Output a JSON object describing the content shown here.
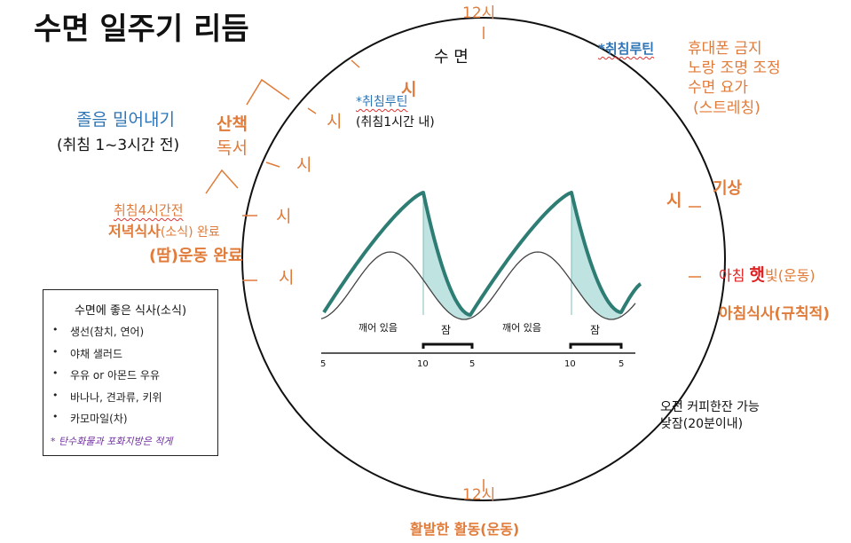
{
  "title": "수면 일주기 리듬",
  "clock": {
    "top_label": "12시",
    "bottom_label": "12시",
    "top_section": "수 면",
    "hour_marks": [
      "시",
      "시",
      "시",
      "시",
      "시",
      "시"
    ]
  },
  "left": {
    "delay_title": "졸음 밀어내기",
    "delay_sub": "(취침 1~3시간 전)",
    "walk": "산책",
    "read": "독서",
    "dinner_line1": "취침4시간전",
    "dinner_line2_bold": "저녁식사",
    "dinner_line2_rest": "(소식) 완료",
    "exercise": "(땀)운동 완료"
  },
  "center": {
    "routine_label": "*취침루틴",
    "routine_sub": "(취침1시간 내)"
  },
  "right_top": {
    "routine_label": "*취침루틴",
    "items": [
      "휴대폰 금지",
      "노랑 조명 조정",
      "수면 요가",
      "(스트레칭)"
    ]
  },
  "right": {
    "wake": "기상",
    "sun_prefix": "아침 ",
    "sun_bold": "햇",
    "sun_rest": "빛(운동)",
    "breakfast": "아침식사(규칙적)",
    "coffee_line1": "오전 커피한잔 가능",
    "coffee_line2": "낮잠(20분이내)"
  },
  "bottom": {
    "activity": "활발한 활동(운동)"
  },
  "food_box": {
    "title": "수면에 좋은 식사(소식)",
    "items": [
      "생선(참치, 연어)",
      "야채 샐러드",
      "우유 or 아몬드 우유",
      "바나나, 견과류, 키위",
      "카모마일(차)"
    ],
    "note": "* 탄수화물과 포화지방은 적게"
  },
  "graph": {
    "labels": {
      "awake1": "깨어 있음",
      "sleep1": "잠",
      "awake2": "깨어 있음",
      "sleep2": "잠"
    },
    "ticks": [
      "5",
      "10",
      "5",
      "10",
      "5"
    ],
    "colors": {
      "curve": "#2e7d74",
      "fill": "#bfe3e0",
      "thin": "#444444"
    }
  }
}
